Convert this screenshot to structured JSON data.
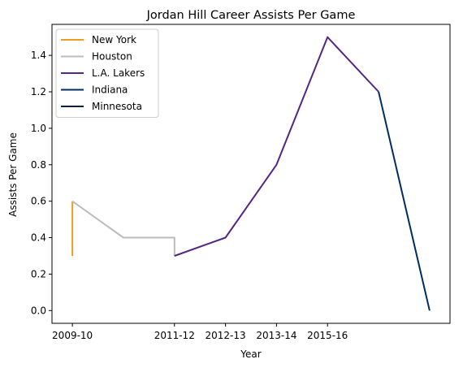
{
  "chart_data": {
    "type": "line",
    "title": "Jordan Hill  Career Assists Per Game",
    "xlabel": "Year",
    "ylabel": "Assists Per Game",
    "x_ticks": [
      "2009-10",
      "2011-12",
      "2012-13",
      "2013-14",
      "2015-16"
    ],
    "x_tick_positions": [
      0,
      2,
      3,
      4,
      5
    ],
    "xlim": [
      -0.4,
      7.4
    ],
    "ylim": [
      -0.07,
      1.57
    ],
    "y_ticks": [
      0.0,
      0.2,
      0.4,
      0.6,
      0.8,
      1.0,
      1.2,
      1.4
    ],
    "grid": false,
    "legend_position": "top-left",
    "series": [
      {
        "name": "New York",
        "color": "#f39c1d",
        "points": [
          [
            0,
            0.3
          ],
          [
            0,
            0.6
          ]
        ]
      },
      {
        "name": "Houston",
        "color": "#bcbcbc",
        "points": [
          [
            0,
            0.6
          ],
          [
            1,
            0.4
          ],
          [
            2,
            0.4
          ],
          [
            2,
            0.3
          ]
        ]
      },
      {
        "name": "L.A. Lakers",
        "color": "#552583",
        "points": [
          [
            2,
            0.3
          ],
          [
            3,
            0.4
          ],
          [
            4,
            0.8
          ],
          [
            5,
            1.5
          ],
          [
            6,
            1.2
          ]
        ]
      },
      {
        "name": "Indiana",
        "color": "#002d62",
        "points": [
          [
            6,
            1.2
          ],
          [
            7,
            0.0
          ]
        ]
      },
      {
        "name": "Minnesota",
        "color": "#0c2340",
        "points": []
      }
    ]
  }
}
